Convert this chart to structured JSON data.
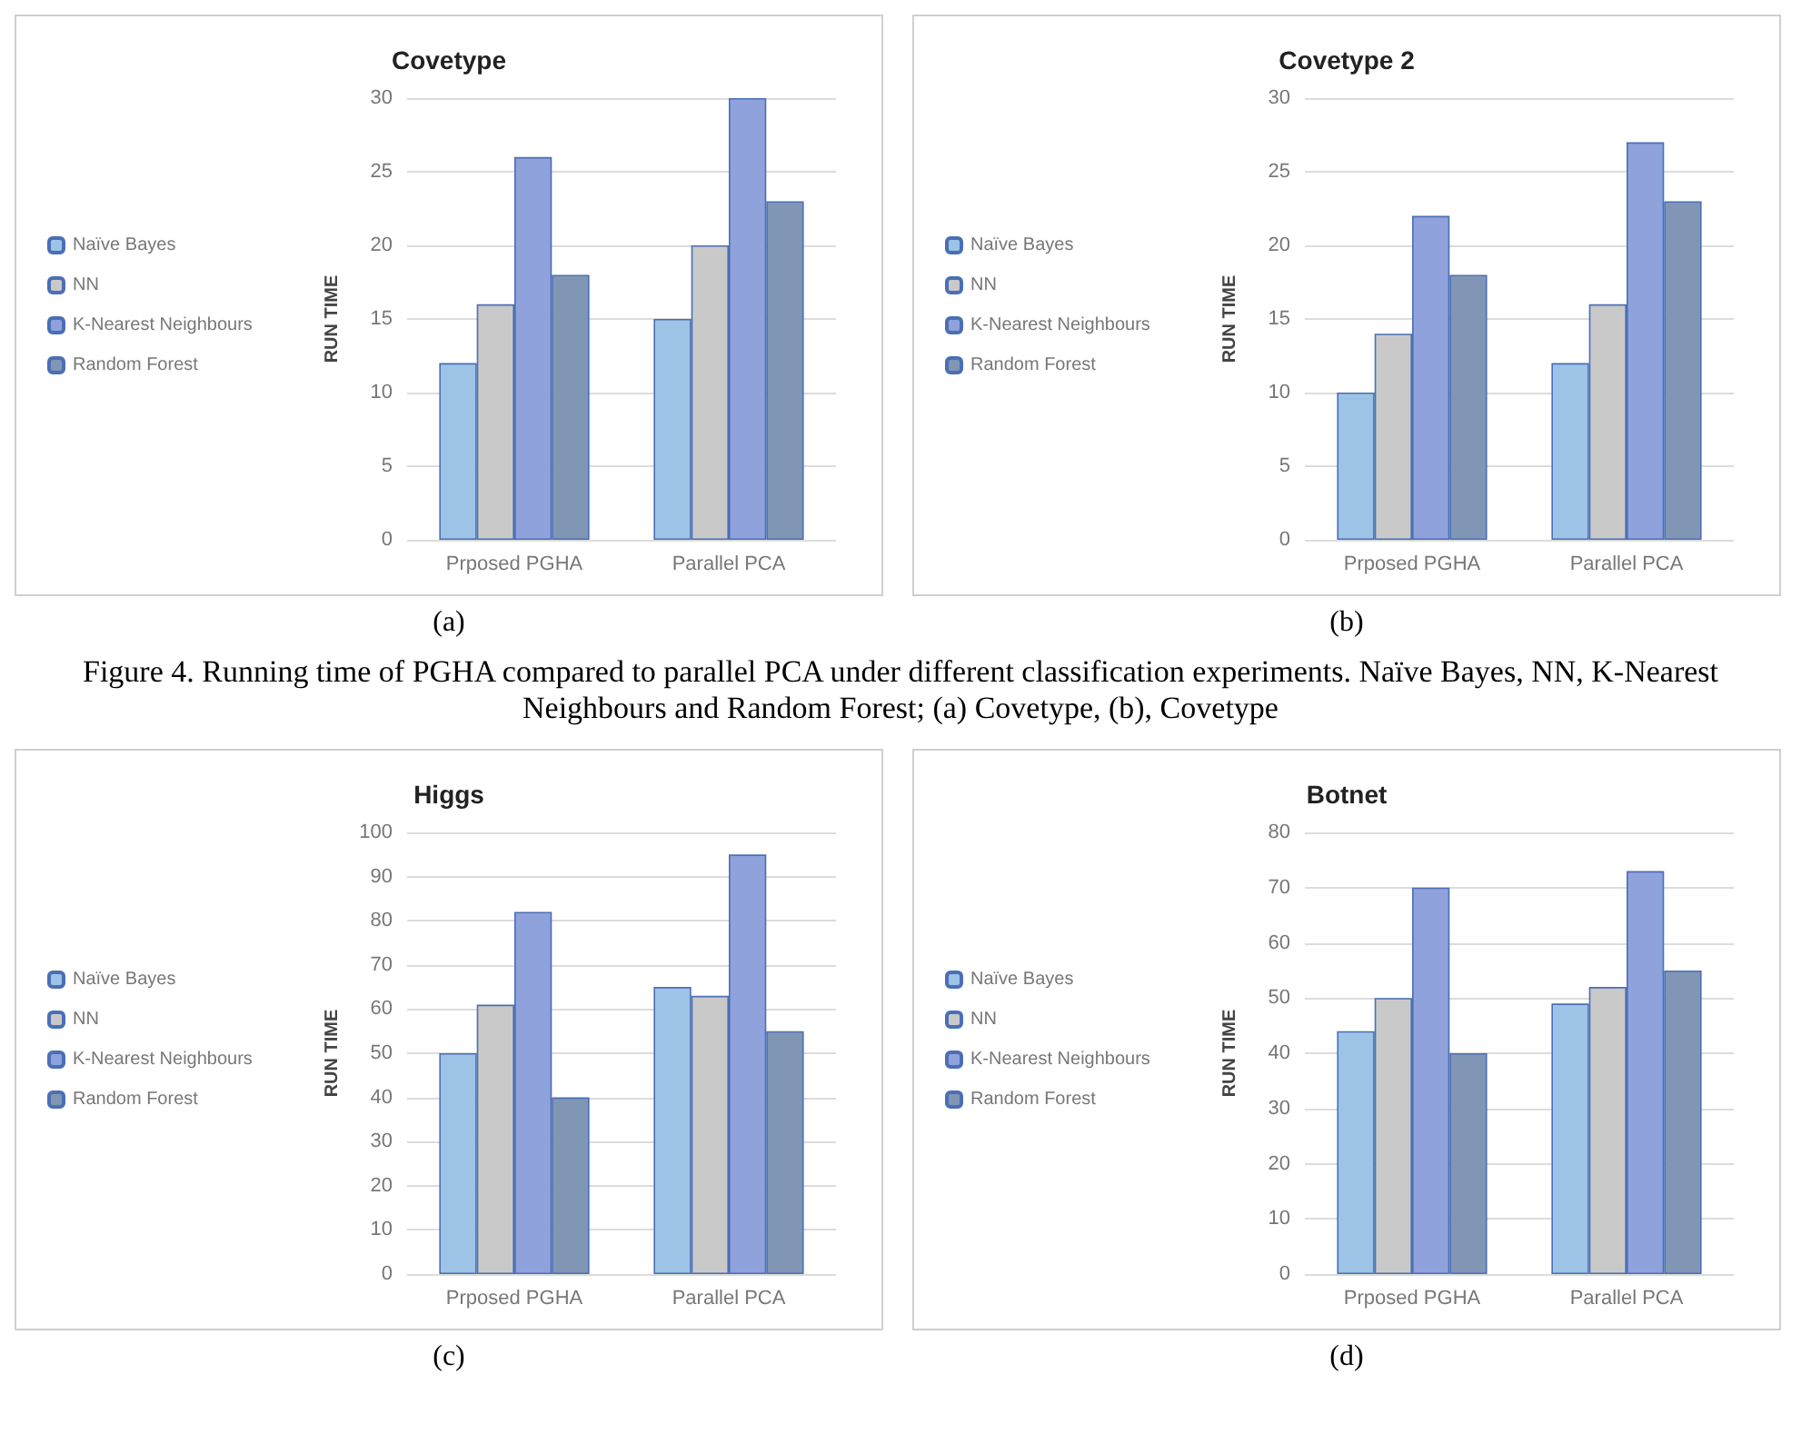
{
  "chart_data": [
    {
      "type": "bar",
      "title": "Covetype",
      "ylabel": "RUN TIME",
      "categories": [
        "Prposed PGHA",
        "Parallel PCA"
      ],
      "ylim": [
        0,
        30
      ],
      "yticks": [
        0,
        5,
        10,
        15,
        20,
        25,
        30
      ],
      "grid": "y",
      "legend": "left",
      "series": [
        {
          "name": "Naïve Bayes",
          "color": "#9dc3e6",
          "values": [
            12,
            15
          ]
        },
        {
          "name": "NN",
          "color": "#c9c9c9",
          "values": [
            16,
            20
          ]
        },
        {
          "name": "K-Nearest Neighbours",
          "color": "#8fa2dc",
          "values": [
            26,
            30
          ]
        },
        {
          "name": "Random Forest",
          "color": "#8096b4",
          "values": [
            18,
            23
          ]
        }
      ],
      "annotations": [
        "(a)"
      ]
    },
    {
      "type": "bar",
      "title": "Covetype 2",
      "ylabel": "RUN TIME",
      "categories": [
        "Prposed PGHA",
        "Parallel PCA"
      ],
      "ylim": [
        0,
        30
      ],
      "yticks": [
        0,
        5,
        10,
        15,
        20,
        25,
        30
      ],
      "grid": "y",
      "legend": "left",
      "series": [
        {
          "name": "Naïve Bayes",
          "color": "#9dc3e6",
          "values": [
            10,
            12
          ]
        },
        {
          "name": "NN",
          "color": "#c9c9c9",
          "values": [
            14,
            16
          ]
        },
        {
          "name": "K-Nearest Neighbours",
          "color": "#8fa2dc",
          "values": [
            22,
            27
          ]
        },
        {
          "name": "Random Forest",
          "color": "#8096b4",
          "values": [
            18,
            23
          ]
        }
      ],
      "annotations": [
        "(b)",
        "Figure 4. Running time of PGHA compared to parallel PCA under different classification experiments. Naïve Bayes, NN, K-Nearest Neighbours and Random Forest; (a) Covetype, (b), Covetype"
      ]
    },
    {
      "type": "bar",
      "title": "Higgs",
      "ylabel": "RUN TIME",
      "categories": [
        "Prposed PGHA",
        "Parallel PCA"
      ],
      "ylim": [
        0,
        100
      ],
      "yticks": [
        0,
        10,
        20,
        30,
        40,
        50,
        60,
        70,
        80,
        90,
        100
      ],
      "grid": "y",
      "legend": "left",
      "series": [
        {
          "name": "Naïve Bayes",
          "color": "#9dc3e6",
          "values": [
            50,
            65
          ]
        },
        {
          "name": "NN",
          "color": "#c9c9c9",
          "values": [
            61,
            63
          ]
        },
        {
          "name": "K-Nearest Neighbours",
          "color": "#8fa2dc",
          "values": [
            82,
            95
          ]
        },
        {
          "name": "Random Forest",
          "color": "#8096b4",
          "values": [
            40,
            55
          ]
        }
      ],
      "annotations": [
        "(c)"
      ]
    },
    {
      "type": "bar",
      "title": "Botnet",
      "ylabel": "RUN TIME",
      "categories": [
        "Prposed PGHA",
        "Parallel PCA"
      ],
      "ylim": [
        0,
        80
      ],
      "yticks": [
        0,
        10,
        20,
        30,
        40,
        50,
        60,
        70,
        80
      ],
      "grid": "y",
      "legend": "left",
      "series": [
        {
          "name": "Naïve Bayes",
          "color": "#9dc3e6",
          "values": [
            44,
            49
          ]
        },
        {
          "name": "NN",
          "color": "#c9c9c9",
          "values": [
            50,
            52
          ]
        },
        {
          "name": "K-Nearest Neighbours",
          "color": "#8fa2dc",
          "values": [
            70,
            73
          ]
        },
        {
          "name": "Random Forest",
          "color": "#8096b4",
          "values": [
            40,
            55
          ]
        }
      ],
      "annotations": [
        "(d)"
      ]
    }
  ]
}
